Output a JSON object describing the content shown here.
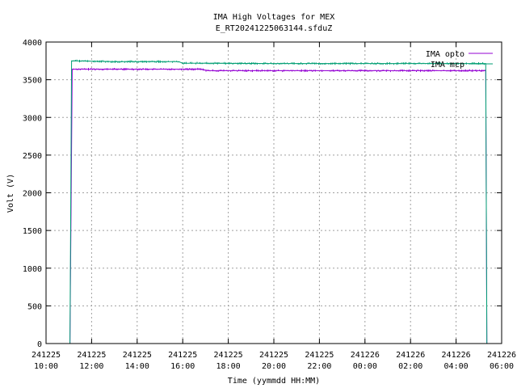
{
  "chart_data": {
    "type": "line",
    "title": "IMA High Voltages for MEX",
    "subtitle": "E_RT20241225063144.sfduZ",
    "xlabel": "Time (yymmdd HH:MM)",
    "ylabel": "Volt (V)",
    "ylim": [
      0,
      4000
    ],
    "xlim_hours": [
      0,
      20
    ],
    "yticks": [
      "0",
      "500",
      "1000",
      "1500",
      "2000",
      "2500",
      "3000",
      "3500",
      "4000"
    ],
    "xticks": [
      {
        "date": "241225",
        "time": "10:00"
      },
      {
        "date": "241225",
        "time": "12:00"
      },
      {
        "date": "241225",
        "time": "14:00"
      },
      {
        "date": "241225",
        "time": "16:00"
      },
      {
        "date": "241225",
        "time": "18:00"
      },
      {
        "date": "241225",
        "time": "20:00"
      },
      {
        "date": "241225",
        "time": "22:00"
      },
      {
        "date": "241226",
        "time": "00:00"
      },
      {
        "date": "241226",
        "time": "02:00"
      },
      {
        "date": "241226",
        "time": "04:00"
      },
      {
        "date": "241226",
        "time": "06:00"
      }
    ],
    "grid": true,
    "legend": "top-right",
    "series": [
      {
        "name": "IMA opto",
        "color": "#9400d3",
        "points": [
          [
            0,
            0
          ],
          [
            1.05,
            0
          ],
          [
            1.15,
            3640
          ],
          [
            3,
            3640
          ],
          [
            5,
            3640
          ],
          [
            6.8,
            3640
          ],
          [
            7.1,
            3620
          ],
          [
            10,
            3620
          ],
          [
            14,
            3620
          ],
          [
            18,
            3620
          ],
          [
            19.3,
            3620
          ],
          [
            19.35,
            0
          ]
        ]
      },
      {
        "name": "IMA mcp",
        "color": "#009e73",
        "points": [
          [
            0,
            0
          ],
          [
            1.05,
            0
          ],
          [
            1.12,
            3750
          ],
          [
            3,
            3740
          ],
          [
            5.8,
            3740
          ],
          [
            6,
            3720
          ],
          [
            10,
            3715
          ],
          [
            14,
            3715
          ],
          [
            18,
            3715
          ],
          [
            19.3,
            3715
          ],
          [
            19.35,
            0
          ]
        ]
      }
    ]
  }
}
